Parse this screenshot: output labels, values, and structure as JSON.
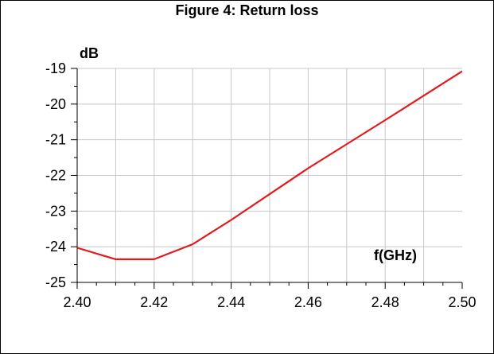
{
  "chart_data": {
    "type": "line",
    "title": "Figure 4: Return loss",
    "xlabel": "f(GHz)",
    "ylabel": "dB",
    "xlim": [
      2.4,
      2.5
    ],
    "ylim": [
      -25,
      -19
    ],
    "xticks": [
      2.4,
      2.42,
      2.44,
      2.46,
      2.48,
      2.5
    ],
    "xtick_labels": [
      "2.40",
      "2.42",
      "2.44",
      "2.46",
      "2.48",
      "2.50"
    ],
    "yticks": [
      -19,
      -20,
      -21,
      -22,
      -23,
      -24,
      -25
    ],
    "ytick_labels": [
      "-19",
      "-20",
      "-21",
      "-22",
      "-23",
      "-24",
      "-25"
    ],
    "grid": true,
    "series": [
      {
        "color": "#e31a1c",
        "x": [
          2.4,
          2.41,
          2.42,
          2.43,
          2.44,
          2.46,
          2.48,
          2.5
        ],
        "y": [
          -24.03,
          -24.35,
          -24.35,
          -23.93,
          -23.25,
          -21.8,
          -20.45,
          -19.08
        ]
      }
    ]
  }
}
